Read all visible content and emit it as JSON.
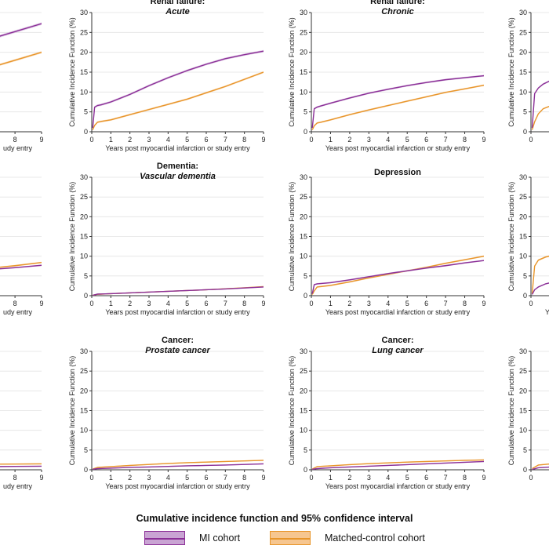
{
  "colors": {
    "mi": "#8b2f97",
    "mi_ci": "#c9a4d3",
    "control": "#e8952a",
    "control_ci": "#f6c690",
    "grid": "#e3e3e3",
    "axis": "#333333"
  },
  "legend": {
    "title": "Cumulative incidence function and 95% confidence interval",
    "mi_label": "MI cohort",
    "control_label": "Matched-control cohort"
  },
  "chart_data": [
    {
      "type": "line",
      "row": 0,
      "col": 0,
      "title": "",
      "subtitle": "",
      "xlabel": "udy entry",
      "ylabel": "",
      "xlim": [
        0,
        9
      ],
      "ylim": [
        0,
        30
      ],
      "xticks_shown": [
        7,
        8,
        9
      ],
      "yticks_shown": [],
      "series": [
        {
          "name": "MI cohort",
          "x": [
            7,
            8,
            9
          ],
          "y": [
            23.2,
            25.2,
            27.2
          ]
        },
        {
          "name": "Matched-control cohort",
          "x": [
            7,
            8,
            9
          ],
          "y": [
            16.0,
            18.0,
            20.0
          ]
        }
      ]
    },
    {
      "type": "line",
      "row": 0,
      "col": 1,
      "title": "Renal failure:",
      "subtitle": "Acute",
      "xlabel": "Years post myocardial infarction or study entry",
      "ylabel": "Cumulative Incidence Function (%)",
      "xlim": [
        0,
        9
      ],
      "ylim": [
        0,
        30
      ],
      "xticks": [
        0,
        1,
        2,
        3,
        4,
        5,
        6,
        7,
        8,
        9
      ],
      "yticks": [
        0,
        5,
        10,
        15,
        20,
        25,
        30
      ],
      "series": [
        {
          "name": "MI cohort",
          "x": [
            0.05,
            0.15,
            0.3,
            0.5,
            1,
            2,
            3,
            4,
            5,
            6,
            7,
            8,
            9
          ],
          "y": [
            1,
            6.2,
            6.6,
            6.8,
            7.5,
            9.4,
            11.6,
            13.6,
            15.4,
            17,
            18.4,
            19.4,
            20.3
          ]
        },
        {
          "name": "Matched-control cohort",
          "x": [
            0.05,
            0.15,
            0.3,
            0.5,
            1,
            2,
            3,
            4,
            5,
            6,
            7,
            8,
            9
          ],
          "y": [
            0.5,
            1.6,
            2.4,
            2.6,
            3.0,
            4.3,
            5.6,
            6.9,
            8.2,
            9.8,
            11.4,
            13.2,
            15.0
          ]
        }
      ]
    },
    {
      "type": "line",
      "row": 0,
      "col": 2,
      "title": "Renal failure:",
      "subtitle": "Chronic",
      "xlabel": "Years post myocardial infarction or study entry",
      "ylabel": "Cumulative Incidence Function (%)",
      "xlim": [
        0,
        9
      ],
      "ylim": [
        0,
        30
      ],
      "xticks": [
        0,
        1,
        2,
        3,
        4,
        5,
        6,
        7,
        8,
        9
      ],
      "yticks": [
        0,
        5,
        10,
        15,
        20,
        25,
        30
      ],
      "series": [
        {
          "name": "MI cohort",
          "x": [
            0.05,
            0.15,
            0.3,
            0.5,
            1,
            2,
            3,
            4,
            5,
            6,
            7,
            8,
            9
          ],
          "y": [
            1,
            5.8,
            6.2,
            6.5,
            7.2,
            8.5,
            9.7,
            10.7,
            11.6,
            12.4,
            13.1,
            13.6,
            14.1
          ]
        },
        {
          "name": "Matched-control cohort",
          "x": [
            0.05,
            0.15,
            0.3,
            0.5,
            1,
            2,
            3,
            4,
            5,
            6,
            7,
            8,
            9
          ],
          "y": [
            0.5,
            1.5,
            2.2,
            2.4,
            3.0,
            4.3,
            5.5,
            6.6,
            7.7,
            8.8,
            9.9,
            10.8,
            11.7
          ]
        }
      ]
    },
    {
      "type": "line",
      "row": 0,
      "col": 3,
      "title": "",
      "subtitle": "",
      "xlabel": "",
      "ylabel": "Cumulative Incidence Function (%)",
      "xlim": [
        0,
        9
      ],
      "ylim": [
        0,
        30
      ],
      "xticks_shown": [
        0
      ],
      "yticks": [
        0,
        5,
        10,
        15,
        20,
        25,
        30
      ],
      "series": [
        {
          "name": "MI cohort",
          "x": [
            0.05,
            0.15,
            0.3,
            0.5,
            1
          ],
          "y": [
            1,
            9.6,
            11.0,
            12.0,
            13.5
          ]
        },
        {
          "name": "Matched-control cohort",
          "x": [
            0.05,
            0.15,
            0.3,
            0.5,
            1
          ],
          "y": [
            0.5,
            2.5,
            4.5,
            5.8,
            7.0
          ]
        }
      ]
    },
    {
      "type": "line",
      "row": 1,
      "col": 0,
      "title": "",
      "subtitle": "",
      "xlabel": "udy entry",
      "ylabel": "",
      "xlim": [
        0,
        9
      ],
      "ylim": [
        0,
        30
      ],
      "xticks_shown": [
        7,
        8,
        9
      ],
      "yticks_shown": [],
      "series": [
        {
          "name": "MI cohort",
          "x": [
            7,
            8,
            9
          ],
          "y": [
            6.6,
            7.1,
            7.7
          ]
        },
        {
          "name": "Matched-control cohort",
          "x": [
            7,
            8,
            9
          ],
          "y": [
            6.9,
            7.6,
            8.4
          ]
        }
      ]
    },
    {
      "type": "line",
      "row": 1,
      "col": 1,
      "title": "Dementia:",
      "subtitle": "Vascular dementia",
      "xlabel": "Years post myocardial infarction or study entry",
      "ylabel": "Cumulative Incidence Function (%)",
      "xlim": [
        0,
        9
      ],
      "ylim": [
        0,
        30
      ],
      "xticks": [
        0,
        1,
        2,
        3,
        4,
        5,
        6,
        7,
        8,
        9
      ],
      "yticks": [
        0,
        5,
        10,
        15,
        20,
        25,
        30
      ],
      "series": [
        {
          "name": "MI cohort",
          "x": [
            0.05,
            0.3,
            1,
            2,
            3,
            4,
            5,
            6,
            7,
            8,
            9
          ],
          "y": [
            0.1,
            0.4,
            0.5,
            0.7,
            0.9,
            1.1,
            1.3,
            1.5,
            1.7,
            1.95,
            2.2
          ]
        },
        {
          "name": "Matched-control cohort",
          "x": [
            0.05,
            0.3,
            1,
            2,
            3,
            4,
            5,
            6,
            7,
            8,
            9
          ],
          "y": [
            0.1,
            0.35,
            0.5,
            0.7,
            0.9,
            1.1,
            1.3,
            1.5,
            1.75,
            2.0,
            2.3
          ]
        }
      ]
    },
    {
      "type": "line",
      "row": 1,
      "col": 2,
      "title": "Depression",
      "subtitle": "",
      "xlabel": "Years post myocardial infarction or study entry",
      "ylabel": "Cumulative Incidence Function (%)",
      "xlim": [
        0,
        9
      ],
      "ylim": [
        0,
        30
      ],
      "xticks": [
        0,
        1,
        2,
        3,
        4,
        5,
        6,
        7,
        8,
        9
      ],
      "yticks": [
        0,
        5,
        10,
        15,
        20,
        25,
        30
      ],
      "series": [
        {
          "name": "MI cohort",
          "x": [
            0.05,
            0.15,
            0.3,
            1,
            2,
            3,
            4,
            5,
            6,
            7,
            8,
            9
          ],
          "y": [
            0.5,
            2.8,
            3.0,
            3.3,
            4.0,
            4.8,
            5.6,
            6.3,
            7.0,
            7.6,
            8.3,
            8.9
          ]
        },
        {
          "name": "Matched-control cohort",
          "x": [
            0.05,
            0.15,
            0.3,
            1,
            2,
            3,
            4,
            5,
            6,
            7,
            8,
            9
          ],
          "y": [
            0.3,
            1.2,
            2.2,
            2.6,
            3.5,
            4.5,
            5.4,
            6.3,
            7.2,
            8.2,
            9.1,
            10.0
          ]
        }
      ]
    },
    {
      "type": "line",
      "row": 1,
      "col": 3,
      "title": "",
      "subtitle": "",
      "xlabel": "Ye",
      "ylabel": "Cumulative Incidence Function (%)",
      "xlim": [
        0,
        9
      ],
      "ylim": [
        0,
        30
      ],
      "xticks_shown": [
        0
      ],
      "yticks": [
        0,
        5,
        10,
        15,
        20,
        25,
        30
      ],
      "series": [
        {
          "name": "MI cohort",
          "x": [
            0.05,
            0.15,
            0.3,
            0.6,
            1
          ],
          "y": [
            0.3,
            1.5,
            2.2,
            3.0,
            3.6
          ]
        },
        {
          "name": "Matched-control cohort",
          "x": [
            0.05,
            0.15,
            0.3,
            0.6,
            1
          ],
          "y": [
            0.5,
            7.5,
            9.0,
            9.8,
            10.4
          ]
        }
      ]
    },
    {
      "type": "line",
      "row": 2,
      "col": 0,
      "title": "",
      "subtitle": "",
      "xlabel": "udy entry",
      "ylabel": "",
      "xlim": [
        0,
        9
      ],
      "ylim": [
        0,
        30
      ],
      "xticks_shown": [
        7,
        8,
        9
      ],
      "yticks_shown": [],
      "series": [
        {
          "name": "MI cohort",
          "x": [
            7,
            8,
            9
          ],
          "y": [
            0.8,
            0.85,
            0.9
          ]
        },
        {
          "name": "Matched-control cohort",
          "x": [
            7,
            8,
            9
          ],
          "y": [
            1.4,
            1.45,
            1.5
          ]
        }
      ]
    },
    {
      "type": "line",
      "row": 2,
      "col": 1,
      "title": "Cancer:",
      "subtitle": "Prostate cancer",
      "xlabel": "Years post myocardial infarction or study entry",
      "ylabel": "Cumulative Incidence Function (%)",
      "xlim": [
        0,
        9
      ],
      "ylim": [
        0,
        30
      ],
      "xticks": [
        0,
        1,
        2,
        3,
        4,
        5,
        6,
        7,
        8,
        9
      ],
      "yticks": [
        0,
        5,
        10,
        15,
        20,
        25,
        30
      ],
      "series": [
        {
          "name": "MI cohort",
          "x": [
            0.05,
            0.3,
            1,
            2,
            3,
            4,
            5,
            6,
            7,
            8,
            9
          ],
          "y": [
            0.1,
            0.3,
            0.4,
            0.6,
            0.7,
            0.85,
            1.0,
            1.1,
            1.2,
            1.35,
            1.5
          ]
        },
        {
          "name": "Matched-control cohort",
          "x": [
            0.05,
            0.3,
            1,
            2,
            3,
            4,
            5,
            6,
            7,
            8,
            9
          ],
          "y": [
            0.2,
            0.6,
            0.8,
            1.1,
            1.35,
            1.6,
            1.8,
            1.95,
            2.1,
            2.25,
            2.4
          ]
        }
      ]
    },
    {
      "type": "line",
      "row": 2,
      "col": 2,
      "title": "Cancer:",
      "subtitle": "Lung cancer",
      "xlabel": "Years post myocardial infarction or study entry",
      "ylabel": "Cumulative Incidence Function (%)",
      "xlim": [
        0,
        9
      ],
      "ylim": [
        0,
        30
      ],
      "xticks": [
        0,
        1,
        2,
        3,
        4,
        5,
        6,
        7,
        8,
        9
      ],
      "yticks": [
        0,
        5,
        10,
        15,
        20,
        25,
        30
      ],
      "series": [
        {
          "name": "MI cohort",
          "x": [
            0.05,
            0.3,
            1,
            2,
            3,
            4,
            5,
            6,
            7,
            8,
            9
          ],
          "y": [
            0.1,
            0.3,
            0.5,
            0.7,
            0.9,
            1.1,
            1.3,
            1.5,
            1.7,
            1.9,
            2.1
          ]
        },
        {
          "name": "Matched-control cohort",
          "x": [
            0.05,
            0.3,
            1,
            2,
            3,
            4,
            5,
            6,
            7,
            8,
            9
          ],
          "y": [
            0.2,
            0.8,
            1.0,
            1.3,
            1.55,
            1.75,
            1.95,
            2.1,
            2.25,
            2.4,
            2.5
          ]
        }
      ]
    },
    {
      "type": "line",
      "row": 2,
      "col": 3,
      "title": "",
      "subtitle": "",
      "xlabel": "",
      "ylabel": "Cumulative Incidence Function (%)",
      "xlim": [
        0,
        9
      ],
      "ylim": [
        0,
        30
      ],
      "xticks_shown": [
        0
      ],
      "yticks": [
        0,
        5,
        10,
        15,
        20,
        25,
        30
      ],
      "series": [
        {
          "name": "MI cohort",
          "x": [
            0.05,
            0.3,
            1
          ],
          "y": [
            0.1,
            0.5,
            0.8
          ]
        },
        {
          "name": "Matched-control cohort",
          "x": [
            0.05,
            0.3,
            1
          ],
          "y": [
            0.3,
            1.2,
            1.6
          ]
        }
      ]
    }
  ]
}
